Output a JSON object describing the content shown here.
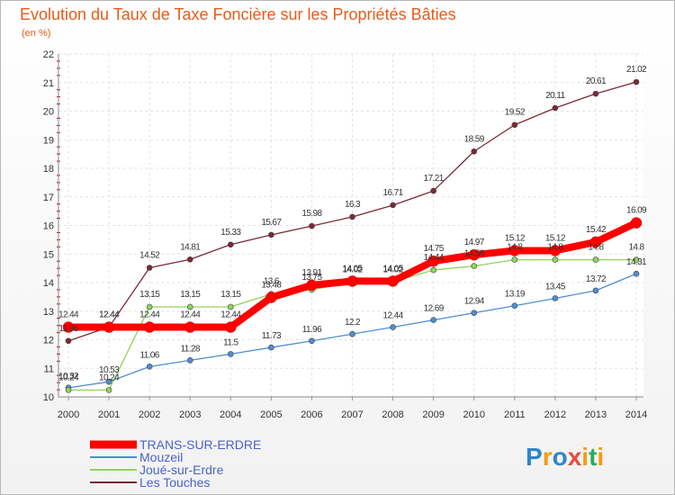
{
  "chart_data": {
    "type": "line",
    "title": "Evolution du Taux de Taxe Foncière sur les Propriétés Bâties",
    "subtitle": "(en %)",
    "xlabel": "",
    "ylabel": "",
    "categories": [
      "2000",
      "2001",
      "2002",
      "2003",
      "2004",
      "2005",
      "2006",
      "2007",
      "2008",
      "2009",
      "2010",
      "2011",
      "2012",
      "2013",
      "2014"
    ],
    "ylim": [
      10,
      22
    ],
    "yticks": [
      "10",
      "11",
      "12",
      "13",
      "14",
      "15",
      "16",
      "17",
      "18",
      "19",
      "20",
      "21",
      "22"
    ],
    "grid": true,
    "legend_position": "bottom-left",
    "series": [
      {
        "name": "TRANS-SUR-ERDRE",
        "color": "#ff0000",
        "values": [
          12.44,
          12.44,
          12.44,
          12.44,
          12.44,
          13.48,
          13.91,
          14.05,
          14.05,
          14.75,
          14.97,
          15.12,
          15.12,
          15.42,
          16.09
        ],
        "labels": [
          "12.44",
          "12.44",
          "12.44",
          "12.44",
          "12.44",
          "13.48",
          "13.91",
          "14.05",
          "14.05",
          "14.75",
          "14.97",
          "15.12",
          "15.12",
          "15.42",
          "16.09"
        ]
      },
      {
        "name": "Mouzeil",
        "color": "#4f8fd0",
        "values": [
          10.32,
          10.53,
          11.06,
          11.28,
          11.5,
          11.73,
          11.96,
          12.2,
          12.44,
          12.69,
          12.94,
          13.19,
          13.45,
          13.72,
          14.31
        ],
        "labels": [
          "10.32",
          "10.53",
          "11.06",
          "11.28",
          "11.5",
          "11.73",
          "11.96",
          "12.2",
          "12.44",
          "12.69",
          "12.94",
          "13.19",
          "13.45",
          "13.72",
          "14.31"
        ]
      },
      {
        "name": "Joué-sur-Erdre",
        "color": "#8fd45c",
        "values": [
          10.24,
          10.24,
          13.15,
          13.15,
          13.15,
          13.6,
          13.75,
          14.02,
          14.02,
          14.44,
          14.58,
          14.8,
          14.8,
          14.8,
          14.8
        ],
        "labels": [
          "10.24",
          "10.24",
          "13.15",
          "13.15",
          "13.15",
          "13.6",
          "13.75",
          "14.02",
          "14.02",
          "14.44",
          "14.58",
          "14.8",
          "14.8",
          "14.8",
          "14.8"
        ]
      },
      {
        "name": "Les Touches",
        "color": "#7a2a35",
        "values": [
          11.96,
          12.44,
          14.52,
          14.81,
          15.33,
          15.67,
          15.98,
          16.3,
          16.71,
          17.21,
          18.59,
          19.52,
          20.11,
          20.61,
          21.02
        ],
        "labels": [
          "11.96",
          "12.44",
          "14.52",
          "14.81",
          "15.33",
          "15.67",
          "15.98",
          "16.3",
          "16.71",
          "17.21",
          "18.59",
          "19.52",
          "20.11",
          "20.61",
          "21.02"
        ]
      }
    ]
  },
  "logo": {
    "text": "Proxiti",
    "colors": [
      "#2e86c9",
      "#f39c12",
      "#e74c3c",
      "#27ae60"
    ]
  }
}
